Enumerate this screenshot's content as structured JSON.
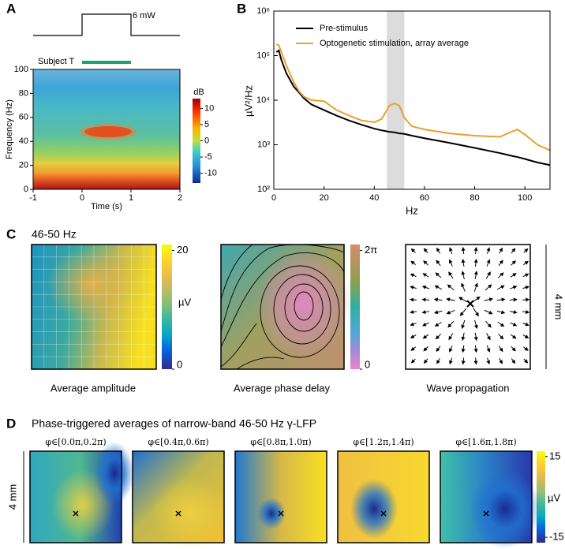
{
  "panels": [
    "A",
    "B",
    "C",
    "D"
  ],
  "panel_a": {
    "stimulus_label": "6 mW",
    "subject_label": "Subject T",
    "stimulus_on": [
      0,
      1
    ],
    "xlabel": "Time (s)",
    "ylabel": "Frequency (Hz)",
    "xlim": [
      -1,
      2
    ],
    "xticks": [
      -1,
      0,
      1,
      2
    ],
    "ylim": [
      0,
      100
    ],
    "yticks": [
      0,
      20,
      40,
      60,
      80,
      100
    ],
    "colorbar_title": "dB",
    "colorbar_lim": [
      -13,
      13
    ],
    "colorbar_ticks": [
      10,
      5,
      0,
      -5,
      -10
    ]
  },
  "chart_data": {
    "type": "line",
    "xlabel": "Hz",
    "ylabel": "µV²/Hz",
    "log_y": true,
    "legend": "upper left",
    "xlim": [
      0,
      110
    ],
    "xticks": [
      0,
      20,
      40,
      60,
      80,
      100
    ],
    "ylim": [
      100,
      1000000
    ],
    "yticks": [
      {
        "value": 100,
        "label": "10²"
      },
      {
        "value": 1000,
        "label": "10³"
      },
      {
        "value": 10000,
        "label": "10⁴"
      },
      {
        "value": 100000,
        "label": "10⁵"
      },
      {
        "value": 1000000,
        "label": "10⁶"
      }
    ],
    "shaded_band": [
      45,
      52
    ],
    "x": [
      1,
      2,
      3,
      5,
      8,
      10,
      12,
      15,
      20,
      25,
      30,
      35,
      40,
      43,
      46,
      48,
      50,
      52,
      55,
      60,
      70,
      80,
      90,
      95,
      97,
      100,
      105,
      110
    ],
    "series": [
      {
        "name": "Pre-stimulus",
        "color": "#000000",
        "values": [
          120000,
          130000,
          80000,
          40000,
          20000,
          15000,
          11000,
          8000,
          6000,
          4500,
          3500,
          2800,
          2300,
          2100,
          1950,
          1900,
          1800,
          1750,
          1600,
          1400,
          1100,
          850,
          650,
          560,
          530,
          480,
          400,
          350
        ]
      },
      {
        "name": "Optogenetic stimulation, array average",
        "color": "#e8a030",
        "values": [
          180000,
          170000,
          120000,
          60000,
          25000,
          16000,
          12000,
          10000,
          9500,
          6000,
          4500,
          3500,
          3200,
          3800,
          7500,
          8500,
          7500,
          4000,
          2600,
          2200,
          1800,
          1600,
          1500,
          2000,
          2200,
          1700,
          1000,
          750
        ]
      }
    ]
  },
  "panel_c": {
    "title": "46-50 Hz",
    "scale_label": "4 mm",
    "maps": [
      {
        "caption": "Average amplitude",
        "colorbar_label": "µV",
        "colorbar_lim": [
          0,
          21
        ],
        "colorbar_ticks": [
          0,
          20
        ]
      },
      {
        "caption": "Average phase delay",
        "colorbar_lim": [
          0,
          6.6
        ],
        "colorbar_ticks": [
          0,
          {
            "value": 6.283,
            "label": "2π"
          }
        ]
      },
      {
        "caption": "Wave propagation"
      }
    ]
  },
  "panel_d": {
    "title": "Phase-triggered averages of narrow-band 46-50 Hz γ-LFP",
    "scale_label": "4 mm",
    "map_labels": [
      "φ∈[0.0π,0.2π)",
      "φ∈[0.4π,0.6π)",
      "φ∈[0.8π,1.0π)",
      "φ∈[1.2π,1.4π)",
      "φ∈[1.6π,1.8π)"
    ],
    "colorbar_label": "µV",
    "colorbar_lim": [
      -17,
      17
    ],
    "colorbar_ticks": [
      15,
      -15
    ]
  }
}
